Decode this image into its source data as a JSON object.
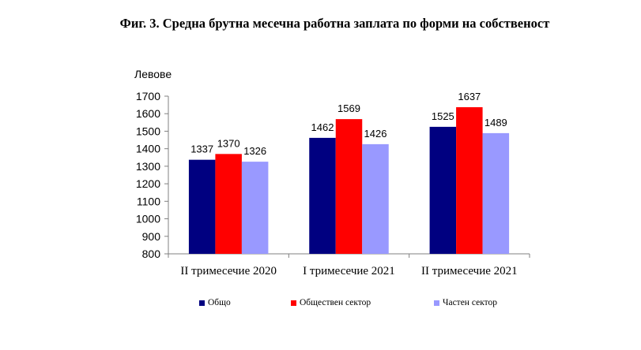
{
  "title": "Фиг. 3. Средна брутна месечна работна заплата по форми на собственост",
  "chart_data": {
    "type": "bar",
    "ylabel": "Левове",
    "ylim": [
      800,
      1700
    ],
    "yticks": [
      800,
      900,
      1000,
      1100,
      1200,
      1300,
      1400,
      1500,
      1600,
      1700
    ],
    "grid": false,
    "legend_position": "bottom",
    "categories": [
      "II тримесечие 2020",
      "I тримесечие 2021",
      "II тримесечие 2021"
    ],
    "series": [
      {
        "name": "Общо",
        "color": "#000080",
        "values": [
          1337,
          1462,
          1525
        ]
      },
      {
        "name": "Обществен сектор",
        "color": "#ff0000",
        "values": [
          1370,
          1569,
          1637
        ]
      },
      {
        "name": "Частен сектор",
        "color": "#9999ff",
        "values": [
          1326,
          1426,
          1489
        ]
      }
    ]
  }
}
